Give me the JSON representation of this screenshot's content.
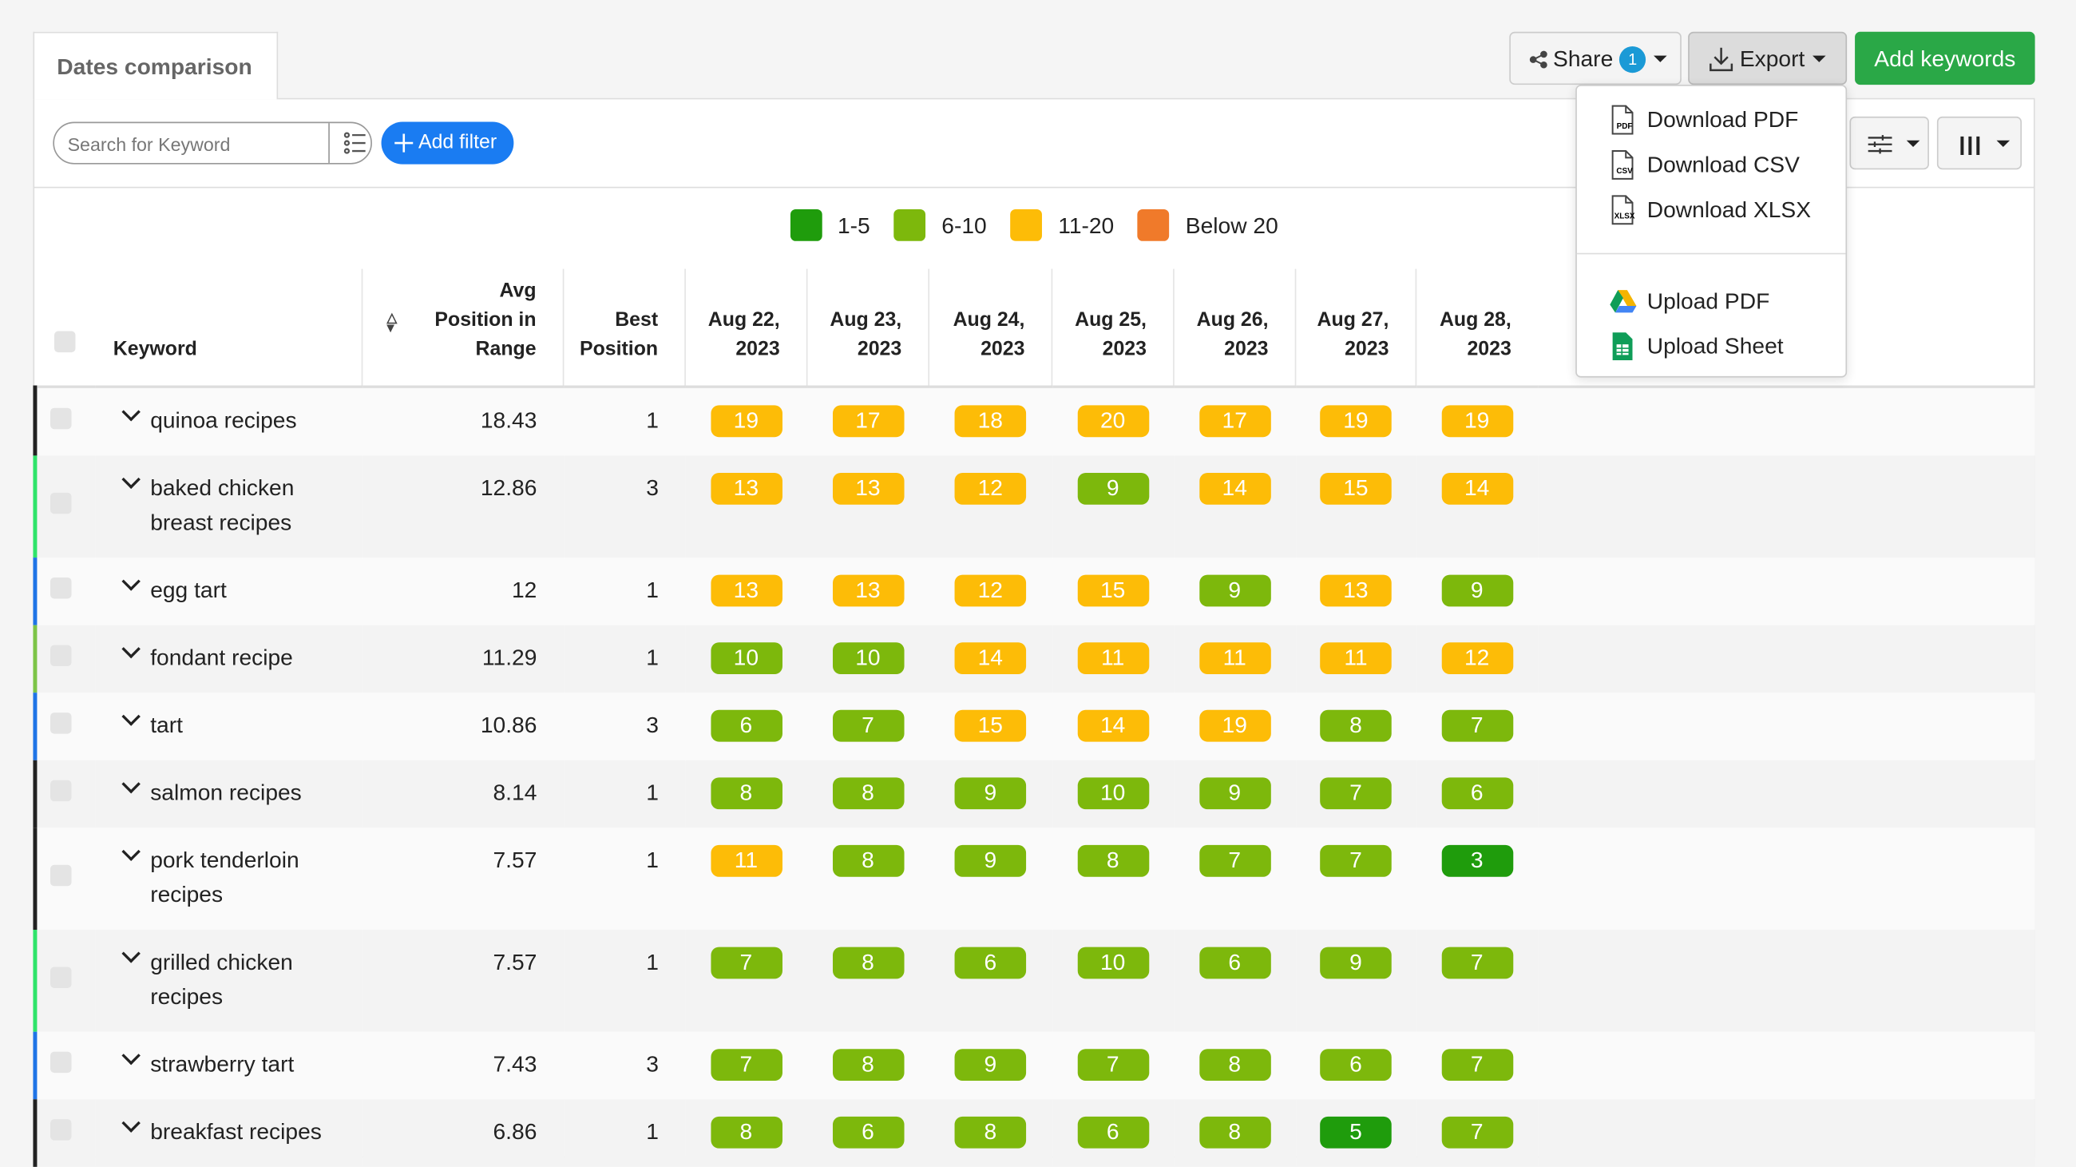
{
  "tab": "Dates comparison",
  "toolbar": {
    "search_placeholder": "Search for Keyword",
    "add_filter": "Add filter",
    "share": "Share",
    "share_count": "1",
    "export": "Export",
    "add_keywords": "Add keywords"
  },
  "export_menu": [
    {
      "label": "Download PDF",
      "icon": "PDF"
    },
    {
      "label": "Download CSV",
      "icon": "CSV"
    },
    {
      "label": "Download XLSX",
      "icon": "XLSX"
    },
    {
      "label": "Upload PDF"
    },
    {
      "label": "Upload Sheet"
    }
  ],
  "legend": [
    {
      "label": "1-5",
      "color": "#1f9c0c",
      "range": [
        1,
        5
      ]
    },
    {
      "label": "6-10",
      "color": "#7db80c",
      "range": [
        6,
        10
      ]
    },
    {
      "label": "11-20",
      "color": "#fdbc07",
      "range": [
        11,
        20
      ]
    },
    {
      "label": "Below 20",
      "color": "#f07a2a",
      "range": [
        21,
        null
      ]
    }
  ],
  "table": {
    "columns": [
      "Keyword",
      "Avg Position in Range",
      "Best Position",
      "Aug 22, 2023",
      "Aug 23, 2023",
      "Aug 24, 2023",
      "Aug 25, 2023",
      "Aug 26, 2023",
      "Aug 27, 2023",
      "Aug 28, 2023"
    ],
    "rows": [
      {
        "keyword": "quinoa recipes",
        "avg": 18.43,
        "best": 1,
        "positions": [
          19,
          17,
          18,
          20,
          17,
          19,
          19
        ],
        "marker_color": "#222222"
      },
      {
        "keyword": "baked chicken breast recipes",
        "avg": 12.86,
        "best": 3,
        "positions": [
          13,
          13,
          12,
          9,
          14,
          15,
          14
        ],
        "marker_color": "#2fe36a"
      },
      {
        "keyword": "egg tart",
        "avg": 12,
        "best": 1,
        "positions": [
          13,
          13,
          12,
          15,
          9,
          13,
          9
        ],
        "marker_color": "#1f74e6"
      },
      {
        "keyword": "fondant recipe",
        "avg": 11.29,
        "best": 1,
        "positions": [
          10,
          10,
          14,
          11,
          11,
          11,
          12
        ],
        "marker_color": "#7cc447"
      },
      {
        "keyword": "tart",
        "avg": 10.86,
        "best": 3,
        "positions": [
          6,
          7,
          15,
          14,
          19,
          8,
          7
        ],
        "marker_color": "#1f74e6"
      },
      {
        "keyword": "salmon recipes",
        "avg": 8.14,
        "best": 1,
        "positions": [
          8,
          8,
          9,
          10,
          9,
          7,
          6
        ],
        "marker_color": "#222222"
      },
      {
        "keyword": "pork tenderloin recipes",
        "avg": 7.57,
        "best": 1,
        "positions": [
          11,
          8,
          9,
          8,
          7,
          7,
          3
        ],
        "marker_color": "#222222"
      },
      {
        "keyword": "grilled chicken recipes",
        "avg": 7.57,
        "best": 1,
        "positions": [
          7,
          8,
          6,
          10,
          6,
          9,
          7
        ],
        "marker_color": "#2fe36a"
      },
      {
        "keyword": "strawberry tart",
        "avg": 7.43,
        "best": 3,
        "positions": [
          7,
          8,
          9,
          7,
          8,
          6,
          7
        ],
        "marker_color": "#1f74e6"
      },
      {
        "keyword": "breakfast recipes",
        "avg": 6.86,
        "best": 1,
        "positions": [
          8,
          6,
          8,
          6,
          8,
          5,
          7
        ],
        "marker_color": "#222222"
      }
    ]
  }
}
